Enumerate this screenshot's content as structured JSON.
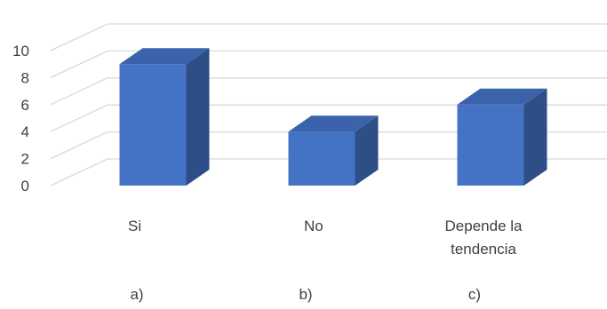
{
  "chart_data": {
    "type": "bar",
    "style": "3d-column",
    "categories": [
      "Si",
      "No",
      "Depende la tendencia"
    ],
    "category_lines": [
      [
        "Si"
      ],
      [
        "No"
      ],
      [
        "Depende la",
        "tendencia"
      ]
    ],
    "sub_labels": [
      "a)",
      "b)",
      "c)"
    ],
    "values": [
      9,
      4,
      6
    ],
    "ylim": [
      0,
      10
    ],
    "yticks": [
      0,
      2,
      4,
      6,
      8,
      10
    ],
    "grid": true,
    "legend": "none",
    "title": "",
    "xlabel": "",
    "ylabel": "",
    "colors": {
      "front": "#4472C4",
      "side": "#2E4E88",
      "top": "#3A63AC",
      "gridline": "#D9D9D9",
      "text": "#404040"
    }
  }
}
